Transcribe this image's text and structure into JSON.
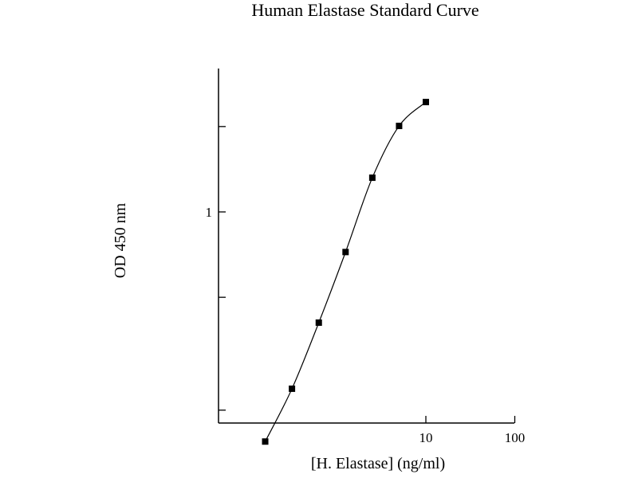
{
  "chart_data": {
    "type": "scatter",
    "title": "Human Elastase Standard Curve",
    "xlabel": "[H. Elastase] (ng/ml)",
    "ylabel": "OD 450 nm",
    "x_scale": "log",
    "y_scale": "log",
    "xlim": [
      0.1,
      100
    ],
    "ylim": [
      0.1,
      10
    ],
    "x_ticks": [
      {
        "value": 10,
        "label": "10"
      },
      {
        "value": 100,
        "label": "100"
      }
    ],
    "y_ticks": [
      {
        "value": 1,
        "label": "1"
      }
    ],
    "grid": false,
    "series": [
      {
        "x": [
          0.156,
          0.312,
          0.625,
          1.25,
          2.5,
          5,
          10
        ],
        "y": [
          0.155,
          0.238,
          0.407,
          0.722,
          1.32,
          2.01,
          2.44
        ]
      }
    ],
    "fit_curve": true
  }
}
